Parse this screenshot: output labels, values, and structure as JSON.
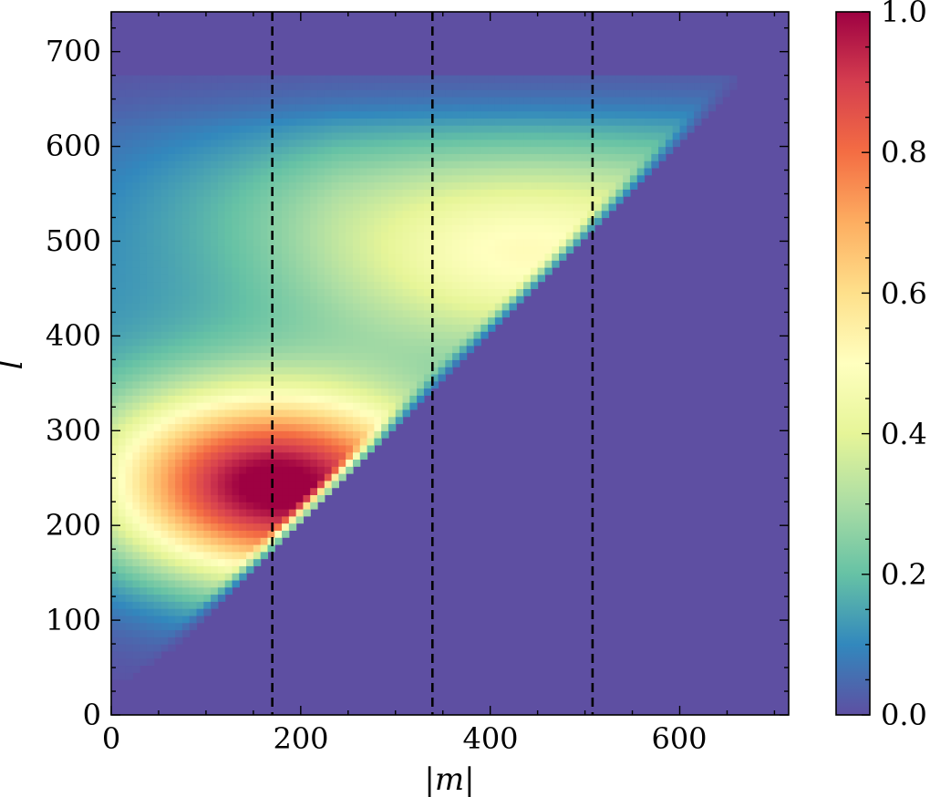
{
  "chart_data": {
    "type": "heatmap",
    "xlabel": "|m|",
    "ylabel": "l",
    "xlim": [
      0,
      715
    ],
    "ylim": [
      0,
      742
    ],
    "x_ticks": [
      "0",
      "200",
      "400",
      "600"
    ],
    "y_ticks": [
      "0",
      "100",
      "200",
      "300",
      "400",
      "500",
      "600",
      "700"
    ],
    "colorbar": {
      "range": [
        0.0,
        1.0
      ],
      "ticks": [
        "0.0",
        "0.2",
        "0.4",
        "0.6",
        "0.8",
        "1.0"
      ],
      "colormap": "Spectral_r"
    },
    "support": "l >= |m|, nonzero for l up to about 670",
    "peak": {
      "m": 175,
      "l": 240,
      "value": 1.0
    },
    "secondary_ridge": {
      "m": 440,
      "l": 475,
      "value": 0.4
    },
    "vertical_lines": [
      170,
      339,
      508
    ],
    "vertical_line_style": "dashed black"
  }
}
